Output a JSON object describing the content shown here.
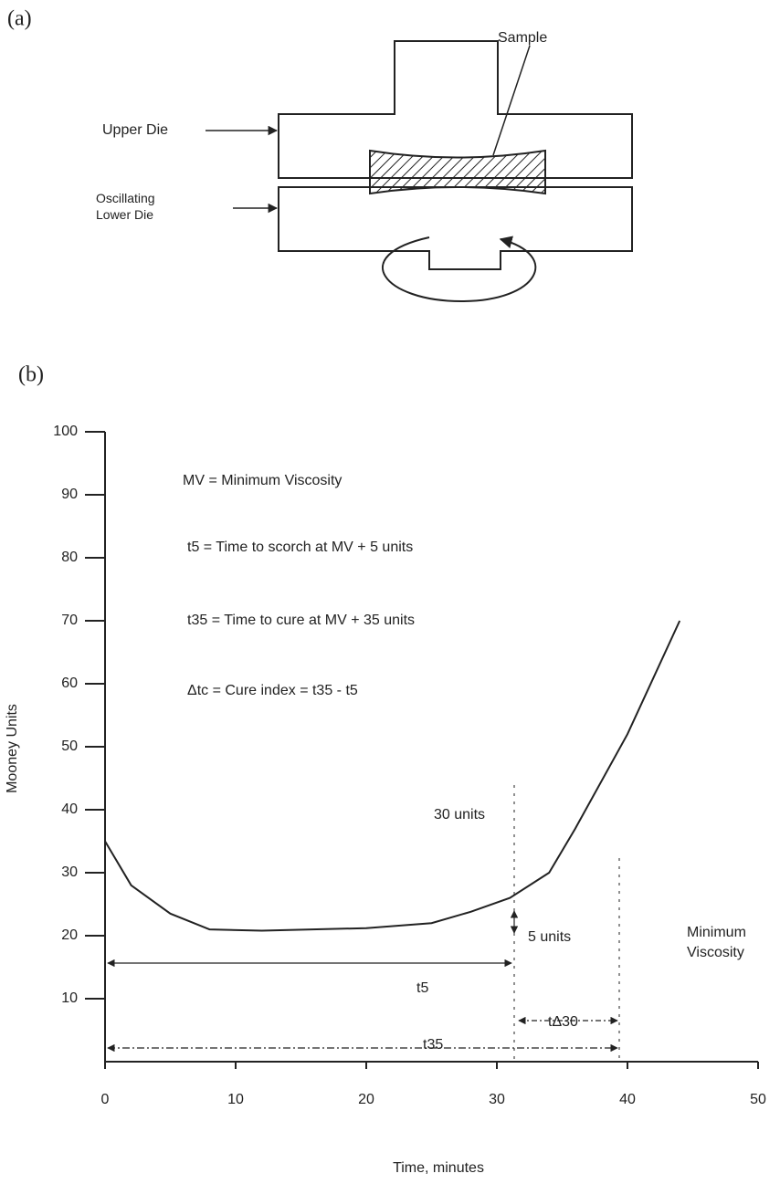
{
  "panel_a": {
    "label": "(a)",
    "sample": "Sample",
    "upper_die": "Upper Die",
    "lower_die": "Oscillating Lower Die"
  },
  "chart_data": {
    "type": "line",
    "panel_label": "(b)",
    "x_label": "Time, minutes",
    "y_label": "Mooney Units",
    "xlim": [
      0,
      50
    ],
    "ylim": [
      0,
      100
    ],
    "xticks": [
      0,
      10,
      20,
      30,
      40,
      50
    ],
    "yticks": [
      10,
      20,
      30,
      40,
      50,
      60,
      70,
      80,
      90,
      100
    ],
    "x": [
      0,
      2,
      5,
      8,
      12,
      20,
      25,
      28,
      31,
      34,
      36,
      40,
      44
    ],
    "series": [
      {
        "color": "#222222",
        "values": [
          35,
          28,
          23.5,
          21,
          20.8,
          21.2,
          22,
          23.8,
          26,
          30,
          37,
          52,
          70
        ]
      }
    ],
    "annotations": [
      "MV = Minimum Viscosity",
      "t5 = Time to scorch at MV + 5 units",
      "t35 = Time to cure at MV + 35 units",
      "Δtc = Cure index = t35 - t5",
      "30 units",
      "5 units",
      "Minimum Viscosity",
      "t5",
      "tΔ30",
      "t35"
    ]
  }
}
